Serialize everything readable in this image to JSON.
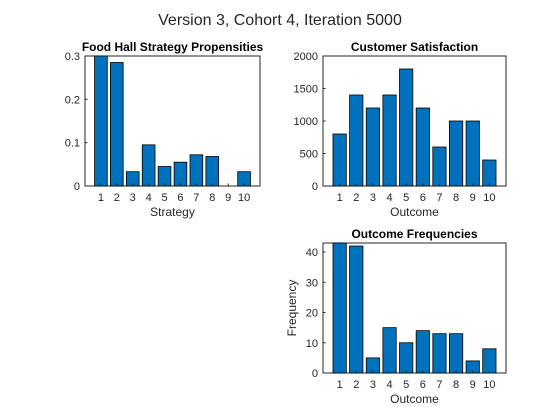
{
  "figure": {
    "title": "Version 3, Cohort 4, Iteration 5000",
    "bar_color": "#0072BD"
  },
  "chart_data": [
    {
      "id": "propensities",
      "type": "bar",
      "title": "Food Hall Strategy Propensities",
      "xlabel": "Strategy",
      "ylabel": "",
      "categories": [
        "1",
        "2",
        "3",
        "4",
        "5",
        "6",
        "7",
        "8",
        "9",
        "10"
      ],
      "values": [
        0.3,
        0.285,
        0.033,
        0.095,
        0.045,
        0.055,
        0.072,
        0.068,
        0.0,
        0.033
      ],
      "ylim": [
        0,
        0.3
      ],
      "yticks": [
        "0",
        "0.1",
        "0.2",
        "0.3"
      ],
      "ytick_values": [
        0,
        0.1,
        0.2,
        0.3
      ]
    },
    {
      "id": "satisfaction",
      "type": "bar",
      "title": "Customer Satisfaction",
      "xlabel": "Outcome",
      "ylabel": "",
      "categories": [
        "1",
        "2",
        "3",
        "4",
        "5",
        "6",
        "7",
        "8",
        "9",
        "10"
      ],
      "values": [
        800,
        1400,
        1200,
        1400,
        1800,
        1200,
        600,
        1000,
        1000,
        400
      ],
      "ylim": [
        0,
        2000
      ],
      "yticks": [
        "0",
        "500",
        "1000",
        "1500",
        "2000"
      ],
      "ytick_values": [
        0,
        500,
        1000,
        1500,
        2000
      ]
    },
    {
      "id": "frequencies",
      "type": "bar",
      "title": "Outcome Frequencies",
      "xlabel": "Outcome",
      "ylabel": "Frequency",
      "categories": [
        "1",
        "2",
        "3",
        "4",
        "5",
        "6",
        "7",
        "8",
        "9",
        "10"
      ],
      "values": [
        43,
        42,
        5,
        15,
        10,
        14,
        13,
        13,
        4,
        8
      ],
      "ylim": [
        0,
        43
      ],
      "yticks": [
        "0",
        "10",
        "20",
        "30",
        "40"
      ],
      "ytick_values": [
        0,
        10,
        20,
        30,
        40
      ]
    }
  ]
}
